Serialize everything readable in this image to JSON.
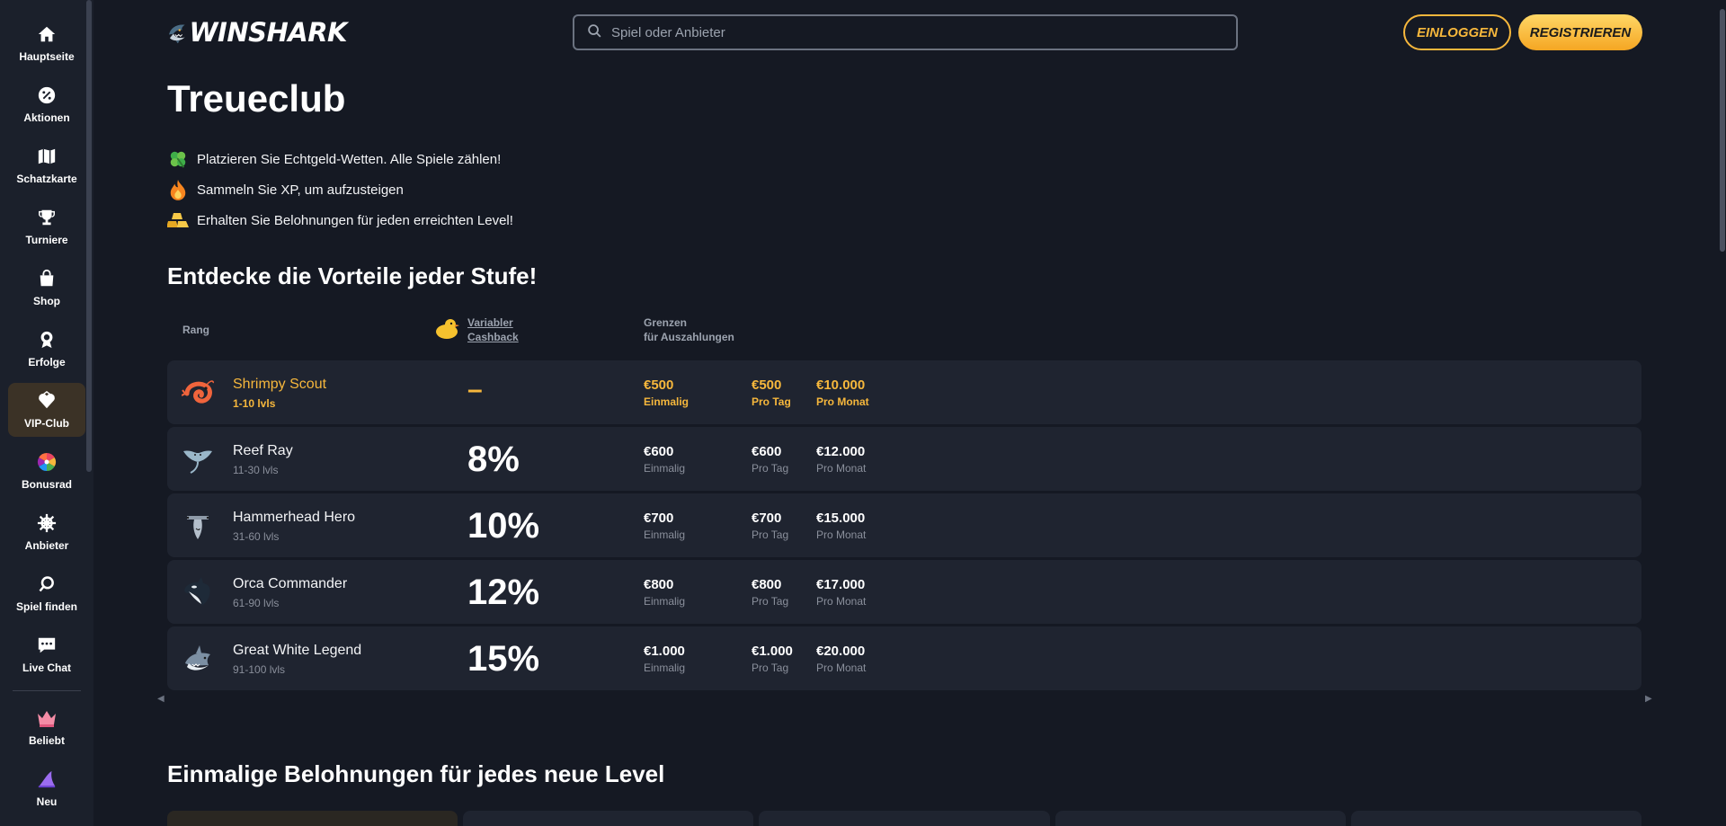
{
  "sidebar": {
    "items": [
      {
        "label": "Hauptseite",
        "icon": "home-icon"
      },
      {
        "label": "Aktionen",
        "icon": "percent-icon"
      },
      {
        "label": "Schatzkarte",
        "icon": "map-icon"
      },
      {
        "label": "Turniere",
        "icon": "trophy-icon"
      },
      {
        "label": "Shop",
        "icon": "bag-icon"
      },
      {
        "label": "Erfolge",
        "icon": "medal-icon"
      },
      {
        "label": "VIP-Club",
        "icon": "vip-icon"
      },
      {
        "label": "Bonusrad",
        "icon": "wheel-icon"
      },
      {
        "label": "Anbieter",
        "icon": "helm-icon"
      },
      {
        "label": "Spiel finden",
        "icon": "search-icon"
      },
      {
        "label": "Live Chat",
        "icon": "chat-icon"
      },
      {
        "label": "Beliebt",
        "icon": "crown-icon"
      },
      {
        "label": "Neu",
        "icon": "fin-icon"
      }
    ]
  },
  "header": {
    "logo_text": "WINSHARK",
    "search_placeholder": "Spiel oder Anbieter",
    "login_label": "EINLOGGEN",
    "register_label": "REGISTRIEREN"
  },
  "colors": {
    "accent": "#f6b73c",
    "background": "#151923",
    "sidebar": "#1b202b",
    "row": "#1f2430"
  },
  "page": {
    "title": "Treueclub",
    "bullets": [
      {
        "icon": "clover-icon",
        "text": "Platzieren Sie Echtgeld-Wetten. Alle Spiele zählen!"
      },
      {
        "icon": "flame-icon",
        "text": "Sammeln Sie XP, um aufzusteigen"
      },
      {
        "icon": "gold-bars-icon",
        "text": "Erhalten Sie Belohnungen für jeden erreichten Level!"
      }
    ],
    "benefits_title": "Entdecke die Vorteile jeder Stufe!",
    "rewards_title": "Einmalige Belohnungen für jedes neue Level"
  },
  "table": {
    "headers": {
      "rank": "Rang",
      "cashback_line1": "Variabler",
      "cashback_line2": "Cashback",
      "limits_line1": "Grenzen",
      "limits_line2": "für Auszahlungen"
    },
    "rows": [
      {
        "icon": "shrimp-icon",
        "name": "Shrimpy Scout",
        "levels": "1-10 lvls",
        "cashback": "–",
        "once": "€500",
        "once_label": "Einmalig",
        "daily": "€500",
        "daily_label": "Pro Tag",
        "monthly": "€10.000",
        "monthly_label": "Pro Monat"
      },
      {
        "icon": "ray-icon",
        "name": "Reef Ray",
        "levels": "11-30 lvls",
        "cashback": "8%",
        "once": "€600",
        "once_label": "Einmalig",
        "daily": "€600",
        "daily_label": "Pro Tag",
        "monthly": "€12.000",
        "monthly_label": "Pro Monat"
      },
      {
        "icon": "hammerhead-icon",
        "name": "Hammerhead Hero",
        "levels": "31-60 lvls",
        "cashback": "10%",
        "once": "€700",
        "once_label": "Einmalig",
        "daily": "€700",
        "daily_label": "Pro Tag",
        "monthly": "€15.000",
        "monthly_label": "Pro Monat"
      },
      {
        "icon": "orca-icon",
        "name": "Orca Commander",
        "levels": "61-90 lvls",
        "cashback": "12%",
        "once": "€800",
        "once_label": "Einmalig",
        "daily": "€800",
        "daily_label": "Pro Tag",
        "monthly": "€17.000",
        "monthly_label": "Pro Monat"
      },
      {
        "icon": "shark-icon",
        "name": "Great White Legend",
        "levels": "91-100 lvls",
        "cashback": "15%",
        "once": "€1.000",
        "once_label": "Einmalig",
        "daily": "€1.000",
        "daily_label": "Pro Tag",
        "monthly": "€20.000",
        "monthly_label": "Pro Monat"
      }
    ]
  }
}
